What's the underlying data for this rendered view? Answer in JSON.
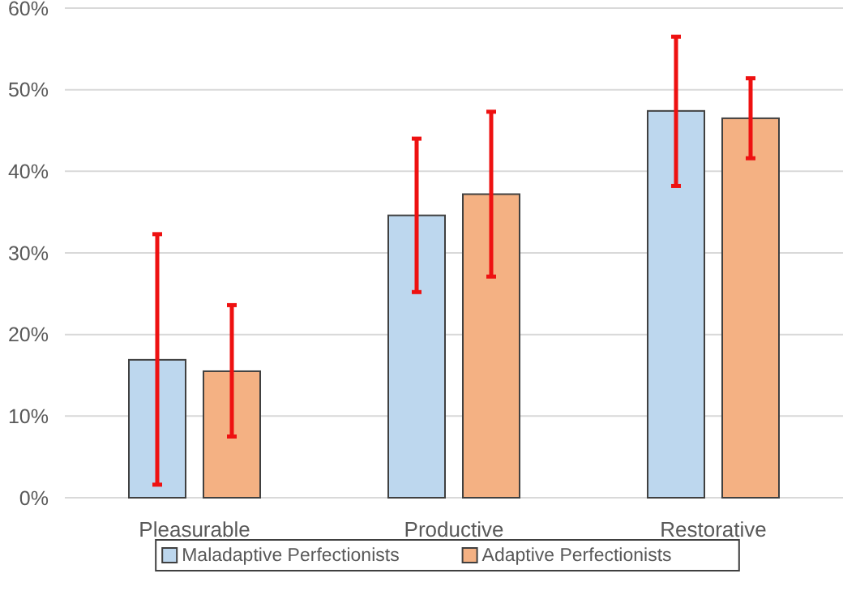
{
  "chart_data": {
    "type": "bar",
    "categories": [
      "Pleasurable",
      "Productive",
      "Restorative"
    ],
    "series": [
      {
        "name": "Maladaptive Perfectionists",
        "color": "#bdd7ee",
        "values": [
          16.9,
          34.6,
          47.4
        ],
        "errors": [
          [
            1.6,
            32.3
          ],
          [
            25.2,
            44.0
          ],
          [
            38.2,
            56.5
          ]
        ]
      },
      {
        "name": "Adaptive Perfectionists",
        "color": "#f4b183",
        "values": [
          15.5,
          37.2,
          46.5
        ],
        "errors": [
          [
            7.5,
            23.6
          ],
          [
            27.1,
            47.3
          ],
          [
            41.6,
            51.4
          ]
        ]
      }
    ],
    "ylim": [
      0,
      60
    ],
    "yticks": [
      {
        "value": 0,
        "label": "0%"
      },
      {
        "value": 10,
        "label": "10%"
      },
      {
        "value": 20,
        "label": "20%"
      },
      {
        "value": 30,
        "label": "30%"
      },
      {
        "value": 40,
        "label": "40%"
      },
      {
        "value": 50,
        "label": "50%"
      },
      {
        "value": 60,
        "label": "60%"
      }
    ],
    "grid": "y",
    "legend": "bottom"
  }
}
